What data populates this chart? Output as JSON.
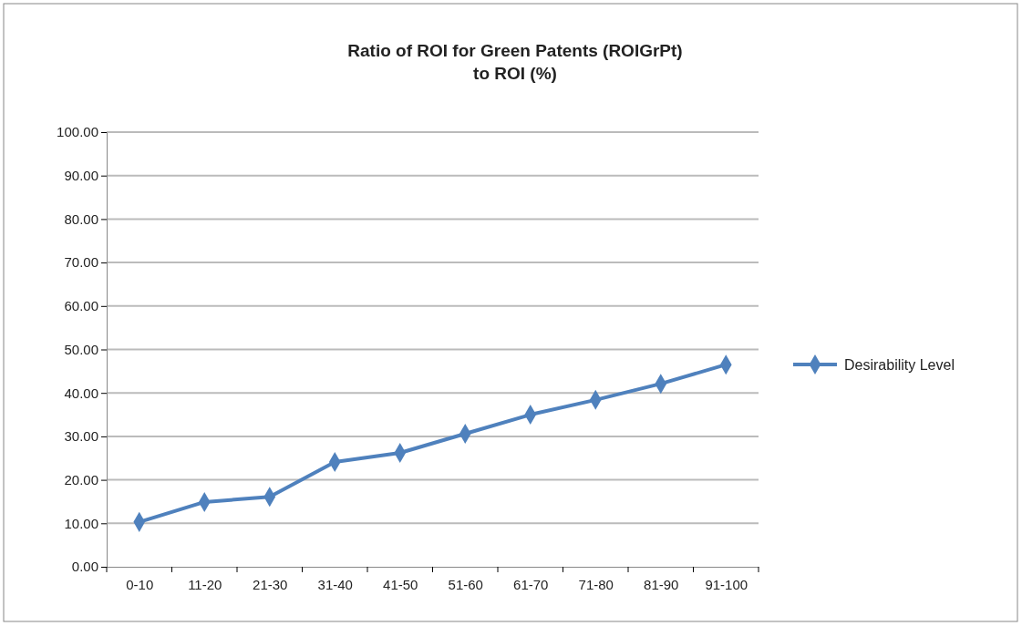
{
  "chart_data": {
    "type": "line",
    "title": "Ratio of ROI for Green Patents (ROIGrPt)\nto ROI (%)",
    "categories": [
      "0-10",
      "11-20",
      "21-30",
      "31-40",
      "41-50",
      "51-60",
      "61-70",
      "71-80",
      "81-90",
      "91-100"
    ],
    "series": [
      {
        "name": "Desirability Level",
        "color": "#4f81bd",
        "values": [
          10.3,
          14.9,
          16.1,
          24.1,
          26.2,
          30.6,
          35.0,
          38.4,
          42.1,
          46.5
        ]
      }
    ],
    "ylim": [
      0,
      100
    ],
    "yticks": [
      {
        "value": 0,
        "label": "0.00"
      },
      {
        "value": 10,
        "label": "10.00"
      },
      {
        "value": 20,
        "label": "20.00"
      },
      {
        "value": 30,
        "label": "30.00"
      },
      {
        "value": 40,
        "label": "40.00"
      },
      {
        "value": 50,
        "label": "50.00"
      },
      {
        "value": 60,
        "label": "60.00"
      },
      {
        "value": 70,
        "label": "70.00"
      },
      {
        "value": 80,
        "label": "80.00"
      },
      {
        "value": 90,
        "label": "90.00"
      },
      {
        "value": 100,
        "label": "100.00"
      }
    ],
    "grid": "y",
    "legend": "right",
    "marker": "diamond",
    "line_style": "solid"
  }
}
